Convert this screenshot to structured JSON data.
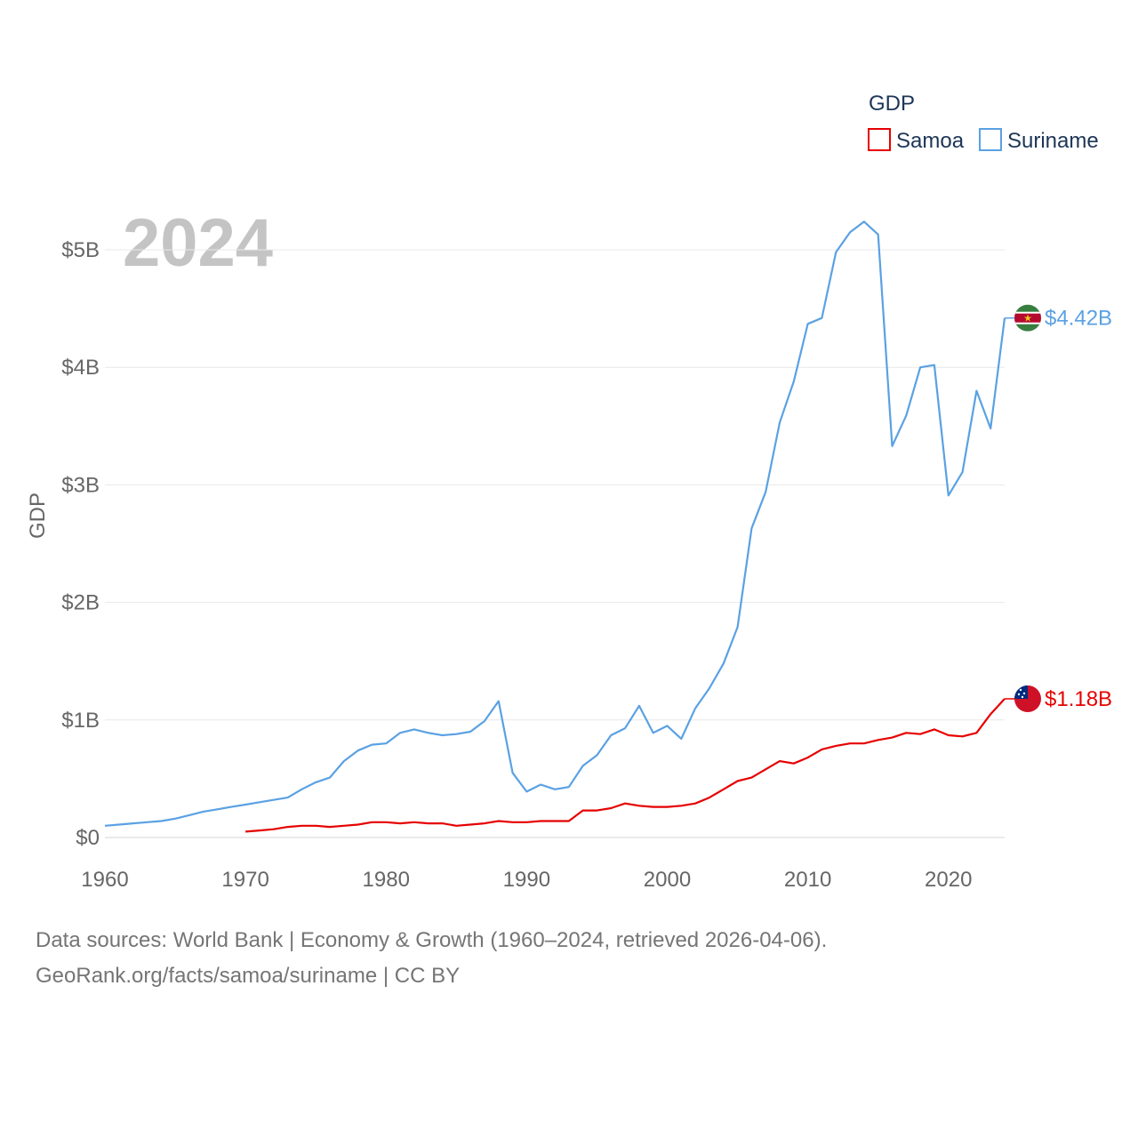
{
  "chart_data": {
    "type": "line",
    "ylabel": "GDP",
    "year_label": "2024",
    "legend": {
      "title": "GDP",
      "position": "top-right"
    },
    "xlim": [
      1960,
      2024
    ],
    "ylim": [
      0,
      5.3
    ],
    "x_ticks": [
      "1960",
      "1970",
      "1980",
      "1990",
      "2000",
      "2010",
      "2020"
    ],
    "x_tick_values": [
      1960,
      1970,
      1980,
      1990,
      2000,
      2010,
      2020
    ],
    "y_ticks": [
      "$0",
      "$1B",
      "$2B",
      "$3B",
      "$4B",
      "$5B"
    ],
    "y_tick_values": [
      0,
      1,
      2,
      3,
      4,
      5
    ],
    "series": [
      {
        "name": "Samoa",
        "color": "#e60000",
        "end_label": "$1.18B",
        "flag_icon": "samoa-flag-icon",
        "x": [
          1970,
          1971,
          1972,
          1973,
          1974,
          1975,
          1976,
          1977,
          1978,
          1979,
          1980,
          1981,
          1982,
          1983,
          1984,
          1985,
          1986,
          1987,
          1988,
          1989,
          1990,
          1991,
          1992,
          1993,
          1994,
          1995,
          1996,
          1997,
          1998,
          1999,
          2000,
          2001,
          2002,
          2003,
          2004,
          2005,
          2006,
          2007,
          2008,
          2009,
          2010,
          2011,
          2012,
          2013,
          2014,
          2015,
          2016,
          2017,
          2018,
          2019,
          2020,
          2021,
          2022,
          2023,
          2024
        ],
        "values": [
          0.05,
          0.06,
          0.07,
          0.09,
          0.1,
          0.1,
          0.09,
          0.1,
          0.11,
          0.13,
          0.13,
          0.12,
          0.13,
          0.12,
          0.12,
          0.1,
          0.11,
          0.12,
          0.14,
          0.13,
          0.13,
          0.14,
          0.14,
          0.14,
          0.23,
          0.23,
          0.25,
          0.29,
          0.27,
          0.26,
          0.26,
          0.27,
          0.29,
          0.34,
          0.41,
          0.48,
          0.51,
          0.58,
          0.65,
          0.63,
          0.68,
          0.75,
          0.78,
          0.8,
          0.8,
          0.83,
          0.85,
          0.89,
          0.88,
          0.92,
          0.87,
          0.86,
          0.89,
          1.05,
          1.18
        ]
      },
      {
        "name": "Suriname",
        "color": "#5aa1e3",
        "end_label": "$4.42B",
        "flag_icon": "suriname-flag-icon",
        "x": [
          1960,
          1961,
          1962,
          1963,
          1964,
          1965,
          1966,
          1967,
          1968,
          1969,
          1970,
          1971,
          1972,
          1973,
          1974,
          1975,
          1976,
          1977,
          1978,
          1979,
          1980,
          1981,
          1982,
          1983,
          1984,
          1985,
          1986,
          1987,
          1988,
          1989,
          1990,
          1991,
          1992,
          1993,
          1994,
          1995,
          1996,
          1997,
          1998,
          1999,
          2000,
          2001,
          2002,
          2003,
          2004,
          2005,
          2006,
          2007,
          2008,
          2009,
          2010,
          2011,
          2012,
          2013,
          2014,
          2015,
          2016,
          2017,
          2018,
          2019,
          2020,
          2021,
          2022,
          2023,
          2024
        ],
        "values": [
          0.1,
          0.11,
          0.12,
          0.13,
          0.14,
          0.16,
          0.19,
          0.22,
          0.24,
          0.26,
          0.28,
          0.3,
          0.32,
          0.34,
          0.41,
          0.47,
          0.51,
          0.65,
          0.74,
          0.79,
          0.8,
          0.89,
          0.92,
          0.89,
          0.87,
          0.88,
          0.9,
          0.99,
          1.16,
          0.55,
          0.39,
          0.45,
          0.41,
          0.43,
          0.61,
          0.7,
          0.87,
          0.93,
          1.12,
          0.89,
          0.95,
          0.84,
          1.1,
          1.27,
          1.48,
          1.79,
          2.63,
          2.94,
          3.53,
          3.88,
          4.37,
          4.42,
          4.98,
          5.15,
          5.24,
          5.13,
          3.33,
          3.59,
          4.0,
          4.02,
          2.91,
          3.11,
          3.8,
          3.48,
          4.42
        ]
      }
    ]
  },
  "source": {
    "line1": "Data sources: World Bank | Economy & Growth (1960–2024, retrieved 2026-04-06).",
    "line2": "GeoRank.org/facts/samoa/suriname | CC BY"
  }
}
